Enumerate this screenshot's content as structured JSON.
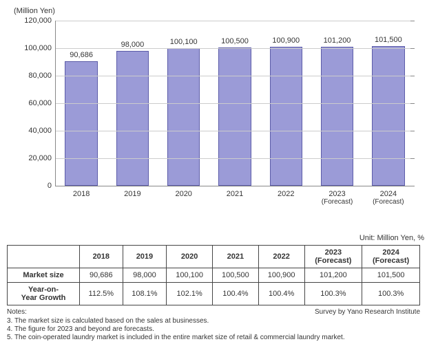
{
  "chart": {
    "type": "bar",
    "y_axis_title": "(Million Yen)",
    "y_axis_title_fontsize": 11,
    "ymin": 0,
    "ymax": 120000,
    "ytick_step": 20000,
    "yticks": [
      "0",
      "20,000",
      "40,000",
      "60,000",
      "80,000",
      "100,000",
      "120,000"
    ],
    "categories": [
      {
        "year": "2018",
        "sub": ""
      },
      {
        "year": "2019",
        "sub": ""
      },
      {
        "year": "2020",
        "sub": ""
      },
      {
        "year": "2021",
        "sub": ""
      },
      {
        "year": "2022",
        "sub": ""
      },
      {
        "year": "2023",
        "sub": "(Forecast)"
      },
      {
        "year": "2024",
        "sub": "(Forecast)"
      }
    ],
    "values": [
      90686,
      98000,
      100100,
      100500,
      100900,
      101200,
      101500
    ],
    "value_labels": [
      "90,686",
      "98,000",
      "100,100",
      "100,500",
      "100,900",
      "101,200",
      "101,500"
    ],
    "bar_fill": "#9b9bd7",
    "bar_border": "#5b5ba8",
    "grid_color": "#cccccc",
    "axis_color": "#888888",
    "background_color": "#ffffff",
    "label_fontsize": 11
  },
  "table": {
    "unit_label": "Unit: Million Yen, %",
    "col_headers": [
      {
        "line1": "2018",
        "line2": ""
      },
      {
        "line1": "2019",
        "line2": ""
      },
      {
        "line1": "2020",
        "line2": ""
      },
      {
        "line1": "2021",
        "line2": ""
      },
      {
        "line1": "2022",
        "line2": ""
      },
      {
        "line1": "2023",
        "line2": "(Forecast)"
      },
      {
        "line1": "2024",
        "line2": "(Forecast)"
      }
    ],
    "rows": [
      {
        "header": "Market size",
        "cells": [
          "90,686",
          "98,000",
          "100,100",
          "100,500",
          "100,900",
          "101,200",
          "101,500"
        ]
      },
      {
        "header": "Year-on-Year Growth",
        "cells": [
          "112.5%",
          "108.1%",
          "102.1%",
          "100.4%",
          "100.4%",
          "100.3%",
          "100.3%"
        ]
      }
    ]
  },
  "footer": {
    "notes_label": "Notes:",
    "survey": "Survey by Yano Research Institute",
    "notes": [
      "3. The market size is calculated based on the sales at businesses.",
      "4. The figure for 2023 and beyond are forecasts.",
      "5. The coin-operated laundry market is included in the entire market size of retail & commercial laundry market."
    ]
  }
}
